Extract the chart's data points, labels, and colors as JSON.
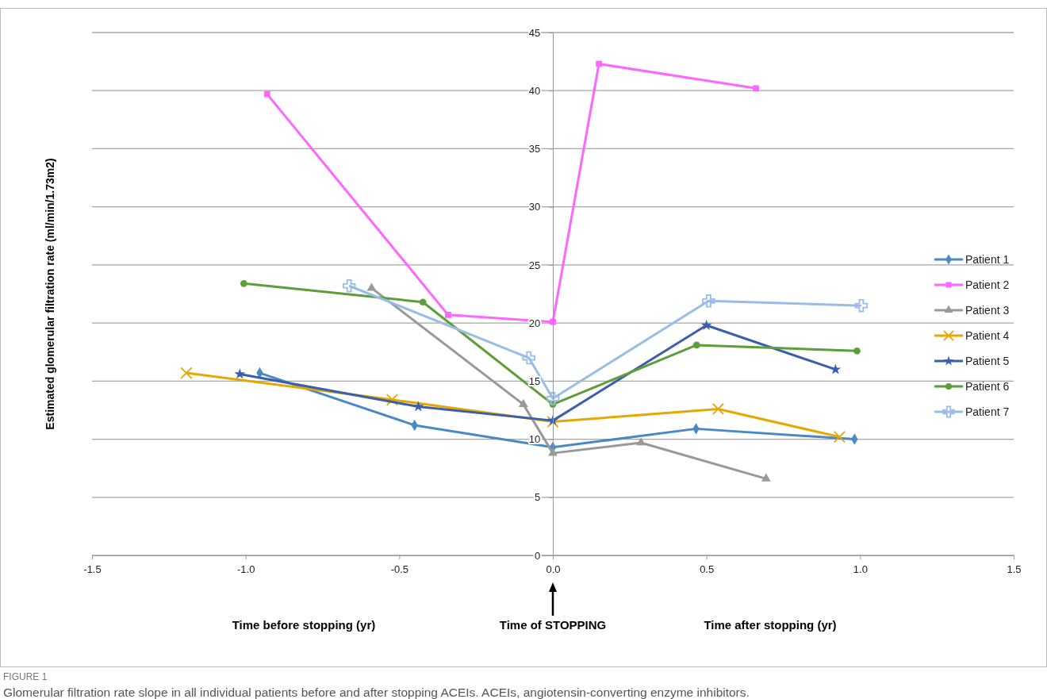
{
  "chart_data": {
    "type": "line",
    "ylabel": "Estimated glomerular  filtration  rate  (ml/min/1.73m2)",
    "xlim": [
      -1.5,
      1.5
    ],
    "xticks": [
      -1.5,
      {
        "value": -1,
        "label": "-1.0"
      },
      -0.5,
      {
        "value": 0,
        "label": "0.0"
      },
      0.5,
      {
        "value": 1,
        "label": "1.0"
      },
      1.5
    ],
    "ylim": [
      0,
      45
    ],
    "yticks": [
      0,
      5,
      10,
      15,
      20,
      25,
      30,
      35,
      40,
      45
    ],
    "grid": "y",
    "legend": "right",
    "annotations": [
      "Time before stopping (yr)",
      "Time of STOPPING",
      "Time after stopping (yr)",
      "FIGURE 1",
      "Glomerular filtration rate slope in all individual patients before and after stopping ACEIs. ACEIs, angiotensin-converting enzyme inhibitors."
    ],
    "series": [
      {
        "name": "Patient 1",
        "color": "#4a8ac4",
        "marker": "diamond",
        "x": [
          -0.954,
          -0.45,
          0,
          0.466,
          0.982
        ],
        "values": [
          15.7,
          11.2,
          9.3,
          10.9,
          10.0
        ]
      },
      {
        "name": "Patient 2",
        "color": "#ff66ff",
        "marker": "square",
        "x": [
          -0.93,
          -0.341,
          0,
          0.15,
          0.661
        ],
        "values": [
          39.7,
          20.7,
          20.1,
          42.3,
          40.2
        ]
      },
      {
        "name": "Patient 3",
        "color": "#999999",
        "marker": "triangle",
        "x": [
          -0.59,
          -0.096,
          0,
          0.287,
          0.694
        ],
        "values": [
          23.0,
          13.0,
          8.8,
          9.7,
          6.6
        ]
      },
      {
        "name": "Patient 4",
        "color": "#e6a800",
        "marker": "cross",
        "x": [
          -1.193,
          -0.523,
          0,
          0.538,
          0.933
        ],
        "values": [
          15.7,
          13.4,
          11.5,
          12.6,
          10.2
        ]
      },
      {
        "name": "Patient 5",
        "color": "#3a5fad",
        "marker": "star",
        "x": [
          -1.019,
          -0.438,
          0,
          0.5,
          0.92
        ],
        "values": [
          15.6,
          12.8,
          11.6,
          19.8,
          16.0
        ]
      },
      {
        "name": "Patient 6",
        "color": "#5c9e3a",
        "marker": "circle",
        "x": [
          -1.006,
          -0.423,
          0,
          0.468,
          0.99
        ],
        "values": [
          23.4,
          21.8,
          13.0,
          18.1,
          17.6
        ]
      },
      {
        "name": "Patient 7",
        "color": "#99bde6",
        "marker": "plus",
        "x": [
          -0.663,
          -0.078,
          0,
          0.507,
          1.004
        ],
        "values": [
          23.2,
          17.0,
          13.5,
          21.9,
          21.5
        ]
      }
    ]
  }
}
